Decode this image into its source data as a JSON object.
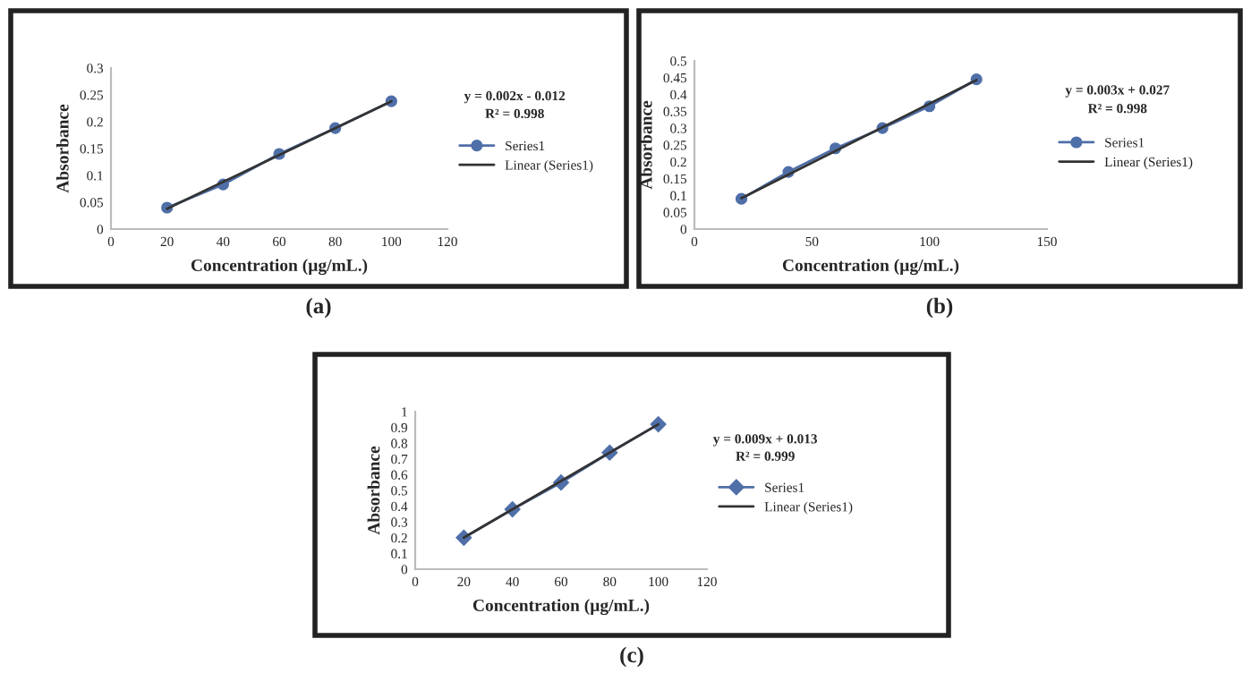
{
  "chart_data": [
    {
      "type": "line",
      "title": "(a)",
      "xlabel": "Concentration (µg/mL.)",
      "ylabel": "Absorbance",
      "xlim": [
        0,
        120
      ],
      "xticks": [
        0,
        20,
        40,
        60,
        80,
        100,
        120
      ],
      "ylim": [
        0,
        0.3
      ],
      "yticks": [
        0,
        0.05,
        0.1,
        0.15,
        0.2,
        0.25,
        0.3
      ],
      "grid": false,
      "legend": "right",
      "annotations": [
        "y = 0.002x - 0.012",
        "R² = 0.998"
      ],
      "series": [
        {
          "name": "Series1",
          "color": "#4f6fa8",
          "marker": "circle",
          "x": [
            20,
            40,
            60,
            80,
            100
          ],
          "values": [
            0.04,
            0.083,
            0.14,
            0.188,
            0.238
          ]
        },
        {
          "name": "Linear (Series1)",
          "color": "#333333",
          "marker": "none",
          "line_style": "solid",
          "x": [
            20,
            100
          ],
          "values": [
            0.038,
            0.238
          ]
        }
      ]
    },
    {
      "type": "line",
      "title": "(b)",
      "xlabel": "Concentration (µg/mL.)",
      "ylabel": "Absorbance",
      "xlim": [
        0,
        150
      ],
      "xticks": [
        0,
        50,
        100,
        150
      ],
      "ylim": [
        0,
        0.5
      ],
      "yticks": [
        0,
        0.05,
        0.1,
        0.15,
        0.2,
        0.25,
        0.3,
        0.35,
        0.4,
        0.45,
        0.5
      ],
      "grid": false,
      "legend": "right",
      "annotations": [
        "y = 0.003x + 0.027",
        "R² = 0.998"
      ],
      "series": [
        {
          "name": "Series1",
          "color": "#4f6fa8",
          "marker": "circle",
          "x": [
            20,
            40,
            60,
            80,
            100,
            120
          ],
          "values": [
            0.09,
            0.17,
            0.24,
            0.3,
            0.365,
            0.445
          ]
        },
        {
          "name": "Linear (Series1)",
          "color": "#333333",
          "marker": "none",
          "line_style": "solid",
          "x": [
            20,
            120
          ],
          "values": [
            0.092,
            0.443
          ]
        }
      ]
    },
    {
      "type": "line",
      "title": "(c)",
      "xlabel": "Concentration (µg/mL.)",
      "ylabel": "Absorbance",
      "xlim": [
        0,
        120
      ],
      "xticks": [
        0,
        20,
        40,
        60,
        80,
        100,
        120
      ],
      "ylim": [
        0,
        1
      ],
      "yticks": [
        0,
        0.1,
        0.2,
        0.3,
        0.4,
        0.5,
        0.6,
        0.7,
        0.8,
        0.9,
        1
      ],
      "grid": false,
      "legend": "right",
      "annotations": [
        "y = 0.009x + 0.013",
        "R² = 0.999"
      ],
      "series": [
        {
          "name": "Series1",
          "color": "#4f6fa8",
          "marker": "diamond",
          "x": [
            20,
            40,
            60,
            80,
            100
          ],
          "values": [
            0.2,
            0.38,
            0.55,
            0.74,
            0.92
          ]
        },
        {
          "name": "Linear (Series1)",
          "color": "#333333",
          "marker": "none",
          "line_style": "solid",
          "x": [
            20,
            100
          ],
          "values": [
            0.2,
            0.92
          ]
        }
      ]
    }
  ]
}
